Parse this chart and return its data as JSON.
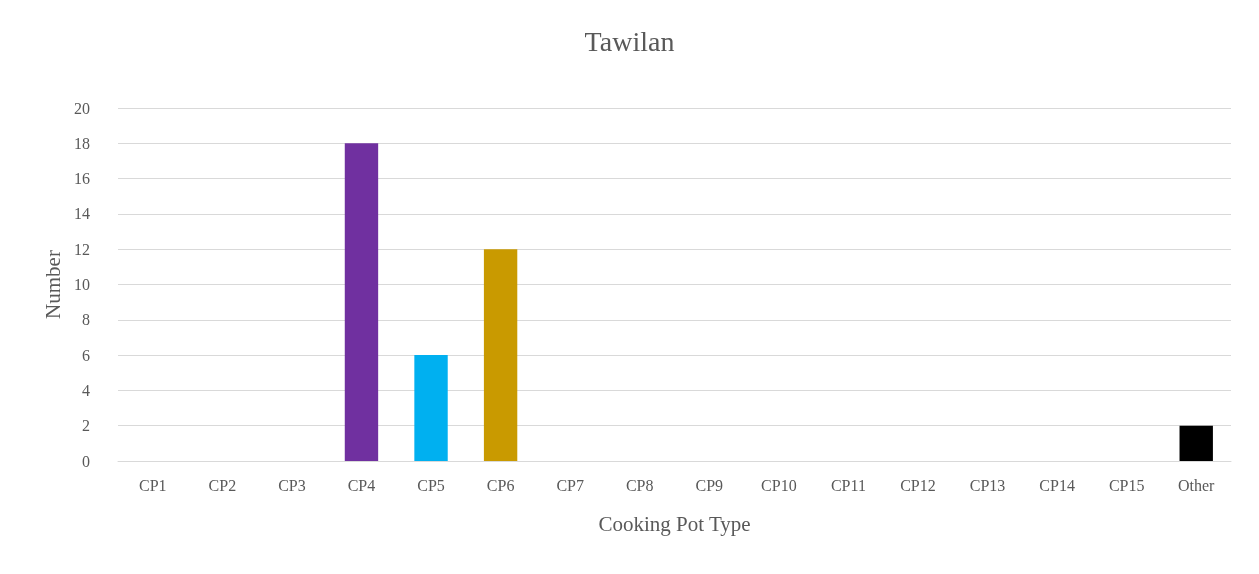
{
  "chart_data": {
    "type": "bar",
    "title": "Tawilan",
    "xlabel": "Cooking Pot Type",
    "ylabel": "Number",
    "categories": [
      "CP1",
      "CP2",
      "CP3",
      "CP4",
      "CP5",
      "CP6",
      "CP7",
      "CP8",
      "CP9",
      "CP10",
      "CP11",
      "CP12",
      "CP13",
      "CP14",
      "CP15",
      "Other"
    ],
    "values": [
      0,
      0,
      0,
      18,
      6,
      12,
      0,
      0,
      0,
      0,
      0,
      0,
      0,
      0,
      0,
      2
    ],
    "colors": [
      "#7030a0",
      "#7030a0",
      "#7030a0",
      "#7030a0",
      "#00b0f0",
      "#c99a00",
      "#7030a0",
      "#7030a0",
      "#7030a0",
      "#7030a0",
      "#7030a0",
      "#7030a0",
      "#7030a0",
      "#7030a0",
      "#7030a0",
      "#000000"
    ],
    "ylim": [
      0,
      20
    ],
    "yticks": [
      0,
      2,
      4,
      6,
      8,
      10,
      12,
      14,
      16,
      18,
      20
    ],
    "grid": "y"
  }
}
